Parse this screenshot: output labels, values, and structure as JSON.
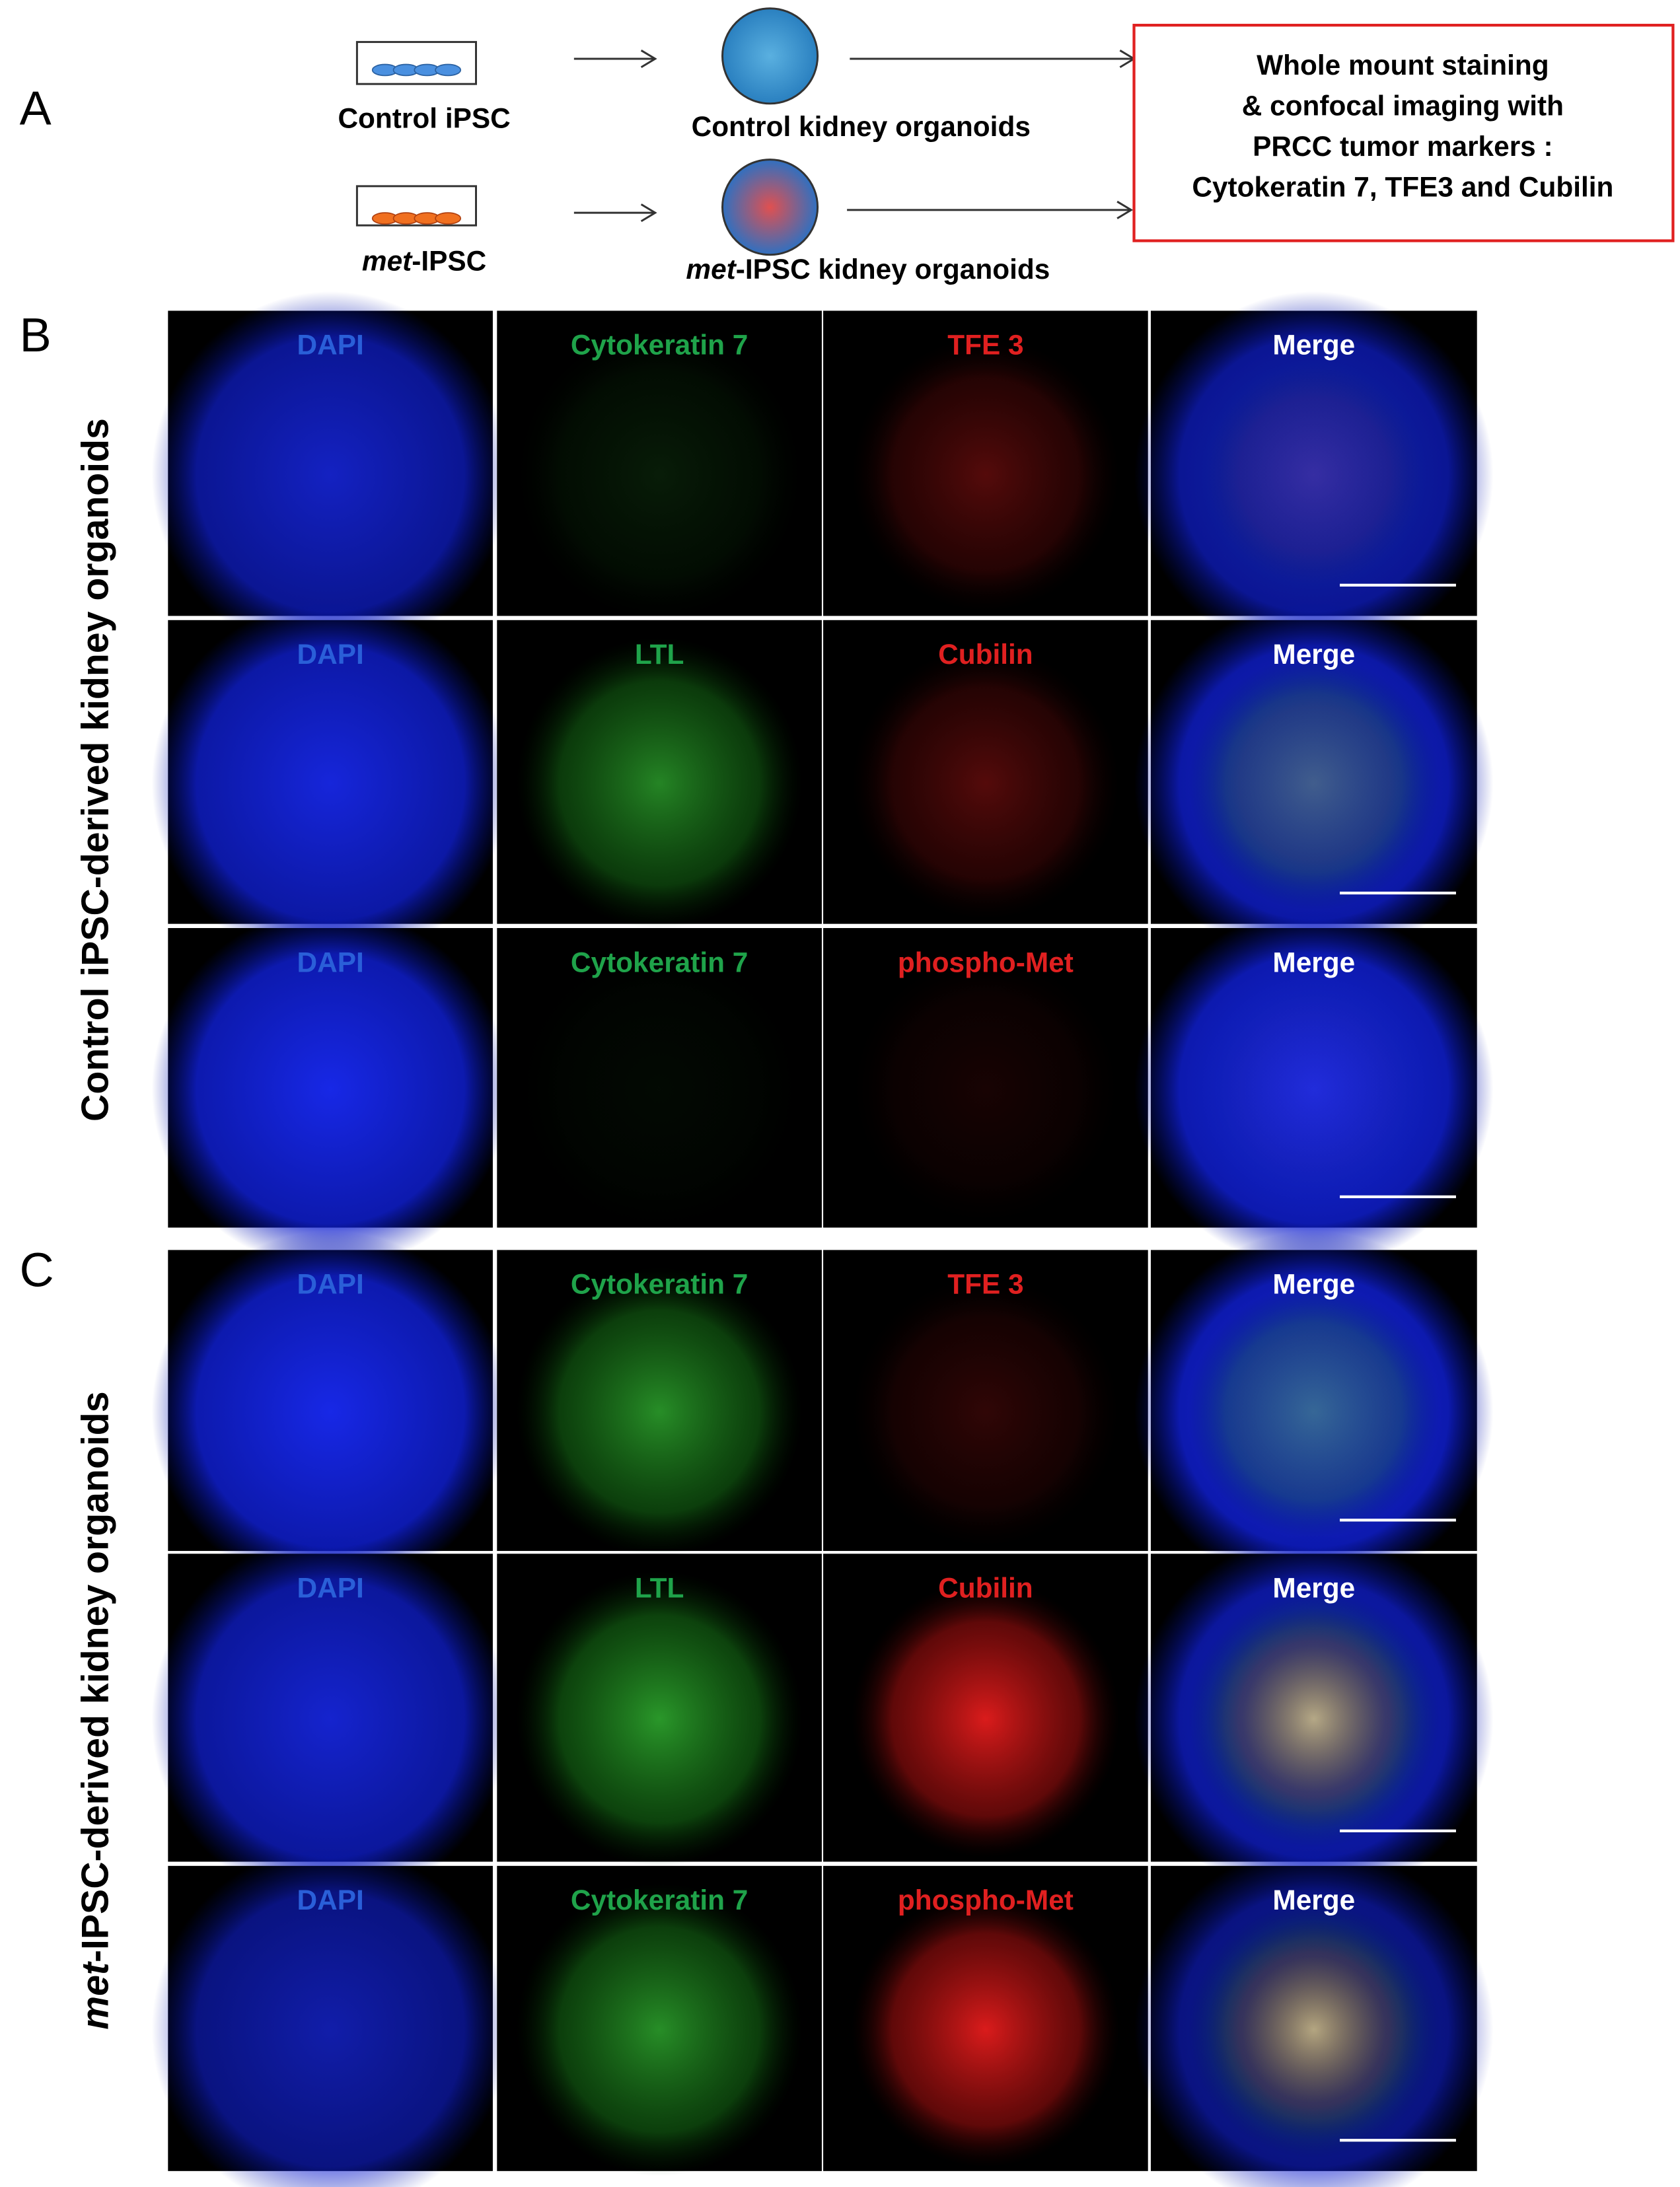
{
  "panel_a": {
    "letter": "A",
    "control_cells": "Control iPSC",
    "control_organoids": "Control kidney organoids",
    "met_cells": {
      "italic": "met",
      "rest": "-IPSC"
    },
    "met_organoids": {
      "italic": "met",
      "rest": "-IPSC kidney organoids"
    },
    "box": [
      "Whole mount staining",
      "& confocal imaging with",
      "PRCC tumor markers :",
      "Cytokeratin 7, TFE3 and Cubilin"
    ]
  },
  "panel_b": {
    "letter": "B",
    "side_label": "Control iPSC-derived kidney organoids",
    "rows": [
      [
        "DAPI",
        "Cytokeratin 7",
        "TFE 3",
        "Merge"
      ],
      [
        "DAPI",
        "LTL",
        "Cubilin",
        "Merge"
      ],
      [
        "DAPI",
        "Cytokeratin 7",
        "phospho-Met",
        "Merge"
      ]
    ]
  },
  "panel_c": {
    "letter": "C",
    "side_label": {
      "italic": "met",
      "rest": "-IPSC-derived kidney organoids"
    },
    "rows": [
      [
        "DAPI",
        "Cytokeratin 7",
        "TFE 3",
        "Merge"
      ],
      [
        "DAPI",
        "LTL",
        "Cubilin",
        "Merge"
      ],
      [
        "DAPI",
        "Cytokeratin 7",
        "phospho-Met",
        "Merge"
      ]
    ]
  }
}
